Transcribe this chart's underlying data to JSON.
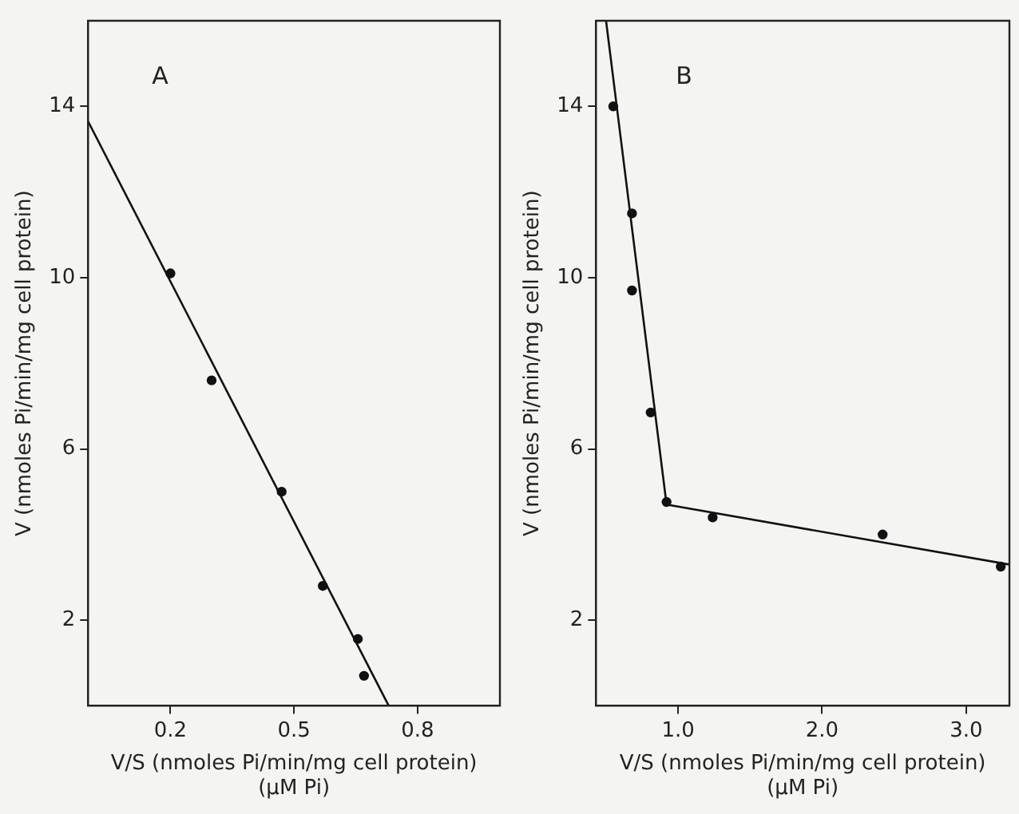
{
  "chart_data": [
    {
      "type": "scatter",
      "title": "A",
      "xlabel": "V/S (nmoles Pi/min/mg cell protein)\n(µM Pi)",
      "ylabel": "V (nmoles Pi/min/mg cell protein)",
      "xlim": [
        0,
        1
      ],
      "xticks": [
        0.2,
        0.5,
        0.8
      ],
      "ylim": [
        0,
        16
      ],
      "yticks": [
        2,
        6,
        10,
        14
      ],
      "series": [
        {
          "marker": "circle",
          "color": "#111111",
          "x": [
            0.2,
            0.3,
            0.47,
            0.57,
            0.655,
            0.67
          ],
          "values": [
            10.1,
            7.6,
            5.0,
            2.8,
            1.56,
            0.7
          ]
        },
        {
          "type": "line",
          "marker": "none",
          "color": "#111111",
          "x": [
            0,
            0.73
          ],
          "values": [
            13.65,
            0
          ]
        }
      ]
    },
    {
      "type": "scatter",
      "title": "B",
      "xlabel": "V/S (nmoles Pi/min/mg cell protein)\n(µM Pi)",
      "ylabel": "V (nmoles Pi/min/mg cell protein)",
      "xlim": [
        0.43,
        3.3
      ],
      "xticks": [
        {
          "value": 1,
          "label": "1.0"
        },
        {
          "value": 2,
          "label": "2.0"
        },
        {
          "value": 3,
          "label": "3.0"
        }
      ],
      "ylim": [
        0,
        16
      ],
      "yticks": [
        2,
        6,
        10,
        14
      ],
      "series": [
        {
          "marker": "circle",
          "color": "#111111",
          "x": [
            0.55,
            0.68,
            0.68,
            0.81,
            0.92,
            1.24,
            2.42,
            3.24
          ],
          "values": [
            14.0,
            11.5,
            9.7,
            6.85,
            4.76,
            4.4,
            4.0,
            3.25
          ]
        },
        {
          "type": "line",
          "marker": "none",
          "color": "#111111",
          "x": [
            0.5,
            0.92,
            3.3
          ],
          "values": [
            16,
            4.7,
            3.3
          ]
        }
      ]
    }
  ]
}
